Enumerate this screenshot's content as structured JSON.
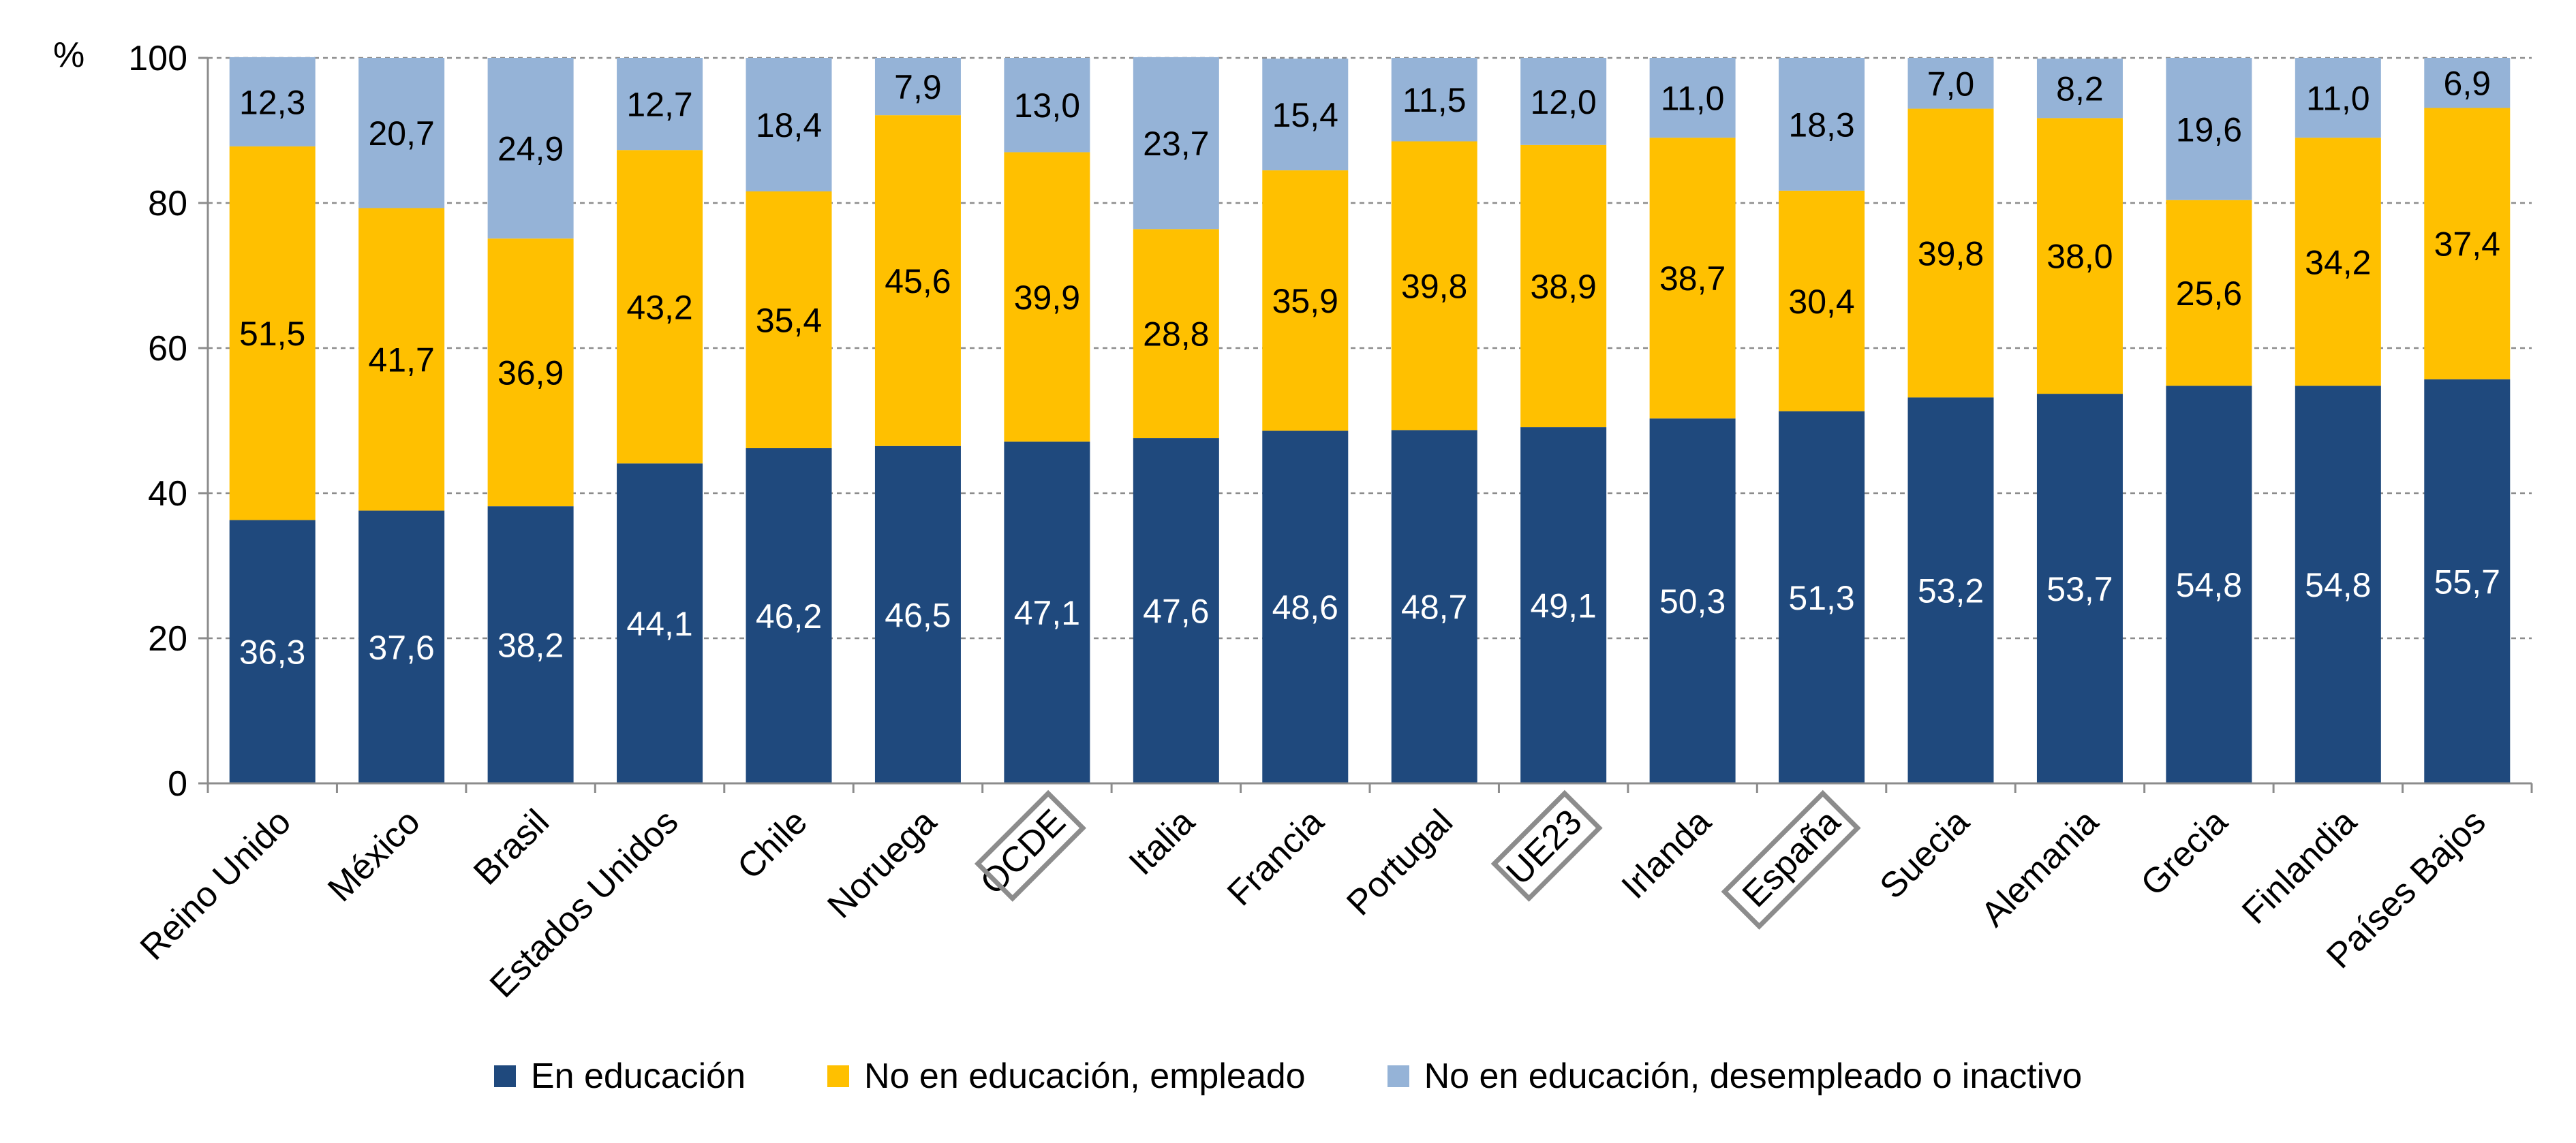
{
  "chart_data": {
    "type": "bar",
    "stacked": true,
    "y_unit_label": "%",
    "ylim": [
      0,
      100
    ],
    "yticks": [
      0,
      20,
      40,
      60,
      80,
      100
    ],
    "grid": true,
    "legend_placement": "bottom",
    "categories": [
      "Reino Unido",
      "México",
      "Brasil",
      "Estados Unidos",
      "Chile",
      "Noruega",
      "OCDE",
      "Italia",
      "Francia",
      "Portugal",
      "UE23",
      "Irlanda",
      "España",
      "Suecia",
      "Alemania",
      "Grecia",
      "Finlandia",
      "Países Bajos"
    ],
    "highlighted_categories": [
      "OCDE",
      "UE23",
      "España"
    ],
    "series": [
      {
        "name": "En educación",
        "color": "#1F497D",
        "label_color": "#FFFFFF",
        "values": [
          36.3,
          37.6,
          38.2,
          44.1,
          46.2,
          46.5,
          47.1,
          47.6,
          48.6,
          48.7,
          49.1,
          50.3,
          51.3,
          53.2,
          53.7,
          54.8,
          54.8,
          55.7
        ],
        "labels": [
          "36,3",
          "37,6",
          "38,2",
          "44,1",
          "46,2",
          "46,5",
          "47,1",
          "47,6",
          "48,6",
          "48,7",
          "49,1",
          "50,3",
          "51,3",
          "53,2",
          "53,7",
          "54,8",
          "54,8",
          "55,7"
        ]
      },
      {
        "name": "No en educación, empleado",
        "color": "#FFC000",
        "label_color": "#000000",
        "values": [
          51.5,
          41.7,
          36.9,
          43.2,
          35.4,
          45.6,
          39.9,
          28.8,
          35.9,
          39.8,
          38.9,
          38.7,
          30.4,
          39.8,
          38.0,
          25.6,
          34.2,
          37.4
        ],
        "labels": [
          "51,5",
          "41,7",
          "36,9",
          "43,2",
          "35,4",
          "45,6",
          "39,9",
          "28,8",
          "35,9",
          "39,8",
          "38,9",
          "38,7",
          "30,4",
          "39,8",
          "38,0",
          "25,6",
          "34,2",
          "37,4"
        ]
      },
      {
        "name": "No en educación, desempleado o inactivo",
        "color": "#95B3D7",
        "label_color": "#000000",
        "values": [
          12.3,
          20.7,
          24.9,
          12.7,
          18.4,
          7.9,
          13.0,
          23.7,
          15.4,
          11.5,
          12.0,
          11.0,
          18.3,
          7.0,
          8.2,
          19.6,
          11.0,
          6.9
        ],
        "labels": [
          "12,3",
          "20,7",
          "24,9",
          "12,7",
          "18,4",
          "7,9",
          "13,0",
          "23,7",
          "15,4",
          "11,5",
          "12,0",
          "11,0",
          "18,3",
          "7,0",
          "8,2",
          "19,6",
          "11,0",
          "6,9"
        ]
      }
    ]
  }
}
